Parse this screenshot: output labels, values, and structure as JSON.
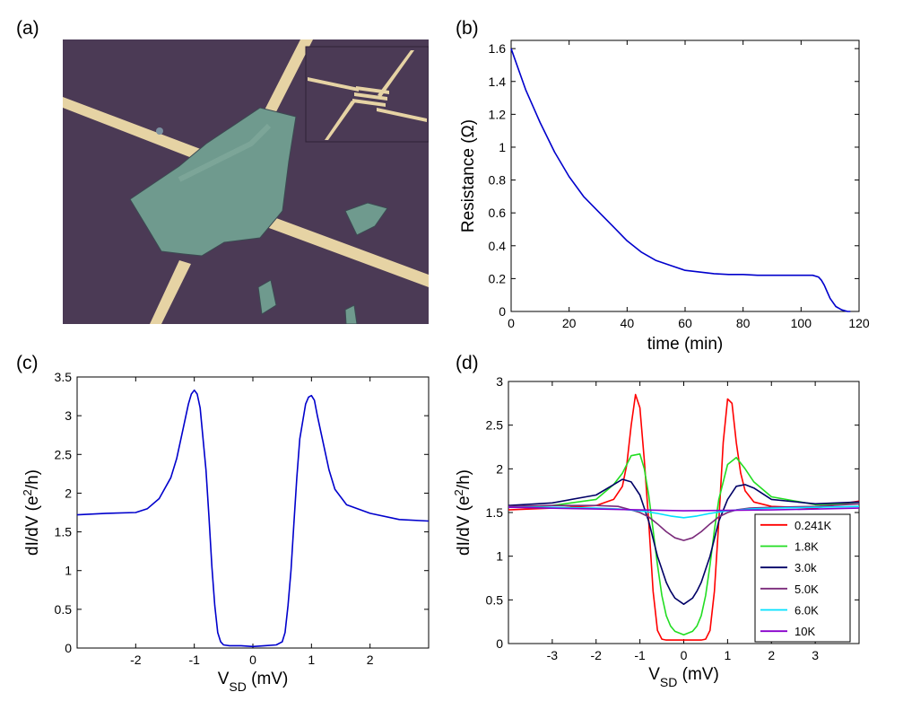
{
  "panel_labels": [
    "(a)",
    "(b)",
    "(c)",
    "(d)"
  ],
  "photo": {
    "background_color": "#4b3a55",
    "flake_color": "#6f9a8e",
    "electrode_color": "#e6d3a4"
  },
  "chart_data": [
    {
      "type": "line",
      "panel": "(b)",
      "xlabel": "time (min)",
      "ylabel": "Resistance (Ω)",
      "xlim": [
        0,
        120
      ],
      "ylim": [
        0,
        1.65
      ],
      "xticks": [
        0,
        20,
        40,
        60,
        80,
        100,
        120
      ],
      "yticks": [
        0,
        0.2,
        0.4,
        0.6,
        0.8,
        1,
        1.2,
        1.4,
        1.6
      ],
      "series": [
        {
          "color": "#0000cc",
          "x": [
            0,
            5,
            10,
            15,
            20,
            25,
            30,
            35,
            40,
            45,
            50,
            55,
            60,
            65,
            70,
            75,
            80,
            85,
            90,
            95,
            100,
            104,
            106,
            107,
            108,
            109,
            110,
            112,
            114,
            116,
            117
          ],
          "y": [
            1.6,
            1.35,
            1.15,
            0.97,
            0.82,
            0.7,
            0.61,
            0.52,
            0.43,
            0.36,
            0.31,
            0.28,
            0.25,
            0.24,
            0.23,
            0.225,
            0.225,
            0.22,
            0.22,
            0.22,
            0.22,
            0.22,
            0.21,
            0.19,
            0.16,
            0.12,
            0.08,
            0.03,
            0.01,
            0.0,
            0.0
          ]
        }
      ]
    },
    {
      "type": "line",
      "panel": "(c)",
      "xlabel": "V_SD (mV)",
      "ylabel": "dI/dV (e²/h)",
      "xlim": [
        -3,
        3
      ],
      "ylim": [
        0,
        3.5
      ],
      "xticks": [
        -2,
        -1,
        0,
        1,
        2
      ],
      "yticks": [
        0,
        0.5,
        1,
        1.5,
        2,
        2.5,
        3,
        3.5
      ],
      "series": [
        {
          "color": "#0000cc",
          "x": [
            -3,
            -2.5,
            -2,
            -1.8,
            -1.6,
            -1.4,
            -1.3,
            -1.2,
            -1.1,
            -1.05,
            -1.0,
            -0.95,
            -0.9,
            -0.8,
            -0.75,
            -0.7,
            -0.65,
            -0.6,
            -0.55,
            -0.5,
            -0.4,
            -0.2,
            0,
            0.2,
            0.4,
            0.5,
            0.55,
            0.6,
            0.65,
            0.7,
            0.75,
            0.8,
            0.9,
            0.95,
            1.0,
            1.05,
            1.1,
            1.2,
            1.3,
            1.4,
            1.6,
            2.0,
            2.5,
            3.0
          ],
          "y": [
            1.72,
            1.74,
            1.75,
            1.8,
            1.93,
            2.2,
            2.45,
            2.8,
            3.15,
            3.28,
            3.33,
            3.28,
            3.1,
            2.3,
            1.7,
            1.05,
            0.55,
            0.2,
            0.08,
            0.04,
            0.03,
            0.03,
            0.02,
            0.03,
            0.04,
            0.08,
            0.2,
            0.55,
            1.0,
            1.6,
            2.2,
            2.7,
            3.15,
            3.24,
            3.26,
            3.2,
            3.0,
            2.65,
            2.3,
            2.05,
            1.85,
            1.74,
            1.66,
            1.64
          ]
        }
      ]
    },
    {
      "type": "line",
      "panel": "(d)",
      "xlabel": "V_SD (mV)",
      "ylabel": "dI/dV (e²/h)",
      "xlim": [
        -4,
        4
      ],
      "ylim": [
        0,
        3
      ],
      "xticks": [
        -3,
        -2,
        -1,
        0,
        1,
        2,
        3
      ],
      "yticks": [
        0,
        0.5,
        1,
        1.5,
        2,
        2.5,
        3
      ],
      "legend_position": "bottom-right",
      "series": [
        {
          "name": "0.241K",
          "color": "#ff0000",
          "x": [
            -4,
            -3,
            -2,
            -1.6,
            -1.4,
            -1.3,
            -1.2,
            -1.1,
            -1.0,
            -0.9,
            -0.8,
            -0.7,
            -0.6,
            -0.5,
            -0.4,
            -0.2,
            0,
            0.2,
            0.4,
            0.5,
            0.6,
            0.7,
            0.8,
            0.9,
            1.0,
            1.1,
            1.2,
            1.3,
            1.4,
            1.6,
            2,
            3,
            4
          ],
          "y": [
            1.53,
            1.55,
            1.58,
            1.65,
            1.8,
            2.05,
            2.5,
            2.85,
            2.7,
            2.1,
            1.4,
            0.6,
            0.15,
            0.05,
            0.04,
            0.04,
            0.04,
            0.04,
            0.04,
            0.05,
            0.15,
            0.6,
            1.4,
            2.3,
            2.8,
            2.75,
            2.3,
            1.95,
            1.75,
            1.62,
            1.57,
            1.55,
            1.63
          ]
        },
        {
          "name": "1.8K",
          "color": "#22dd22",
          "x": [
            -4,
            -3,
            -2,
            -1.6,
            -1.4,
            -1.2,
            -1.0,
            -0.9,
            -0.8,
            -0.7,
            -0.6,
            -0.5,
            -0.4,
            -0.3,
            -0.2,
            0,
            0.2,
            0.3,
            0.4,
            0.5,
            0.6,
            0.7,
            0.8,
            1.0,
            1.2,
            1.4,
            1.6,
            2,
            3,
            4
          ],
          "y": [
            1.56,
            1.58,
            1.65,
            1.82,
            1.95,
            2.15,
            2.17,
            2.0,
            1.7,
            1.3,
            0.9,
            0.55,
            0.32,
            0.2,
            0.14,
            0.1,
            0.14,
            0.2,
            0.32,
            0.55,
            0.9,
            1.3,
            1.65,
            2.05,
            2.13,
            2.0,
            1.85,
            1.68,
            1.59,
            1.6
          ]
        },
        {
          "name": "3.0k",
          "color": "#000066",
          "x": [
            -4,
            -3,
            -2,
            -1.6,
            -1.4,
            -1.2,
            -1.0,
            -0.9,
            -0.8,
            -0.7,
            -0.6,
            -0.5,
            -0.4,
            -0.3,
            -0.2,
            0,
            0.2,
            0.3,
            0.4,
            0.5,
            0.6,
            0.7,
            0.8,
            1.0,
            1.2,
            1.4,
            1.6,
            2,
            3,
            4
          ],
          "y": [
            1.58,
            1.61,
            1.7,
            1.82,
            1.88,
            1.85,
            1.7,
            1.55,
            1.4,
            1.2,
            1.0,
            0.85,
            0.7,
            0.6,
            0.52,
            0.45,
            0.52,
            0.6,
            0.7,
            0.85,
            1.0,
            1.2,
            1.4,
            1.65,
            1.8,
            1.82,
            1.78,
            1.65,
            1.6,
            1.62
          ]
        },
        {
          "name": "5.0K",
          "color": "#7a2a7a",
          "x": [
            -4,
            -3,
            -2,
            -1.5,
            -1.2,
            -1.0,
            -0.8,
            -0.6,
            -0.4,
            -0.2,
            0,
            0.2,
            0.4,
            0.6,
            0.8,
            1.0,
            1.2,
            1.5,
            2,
            3,
            4
          ],
          "y": [
            1.57,
            1.58,
            1.58,
            1.57,
            1.53,
            1.5,
            1.45,
            1.37,
            1.28,
            1.21,
            1.18,
            1.21,
            1.28,
            1.37,
            1.45,
            1.5,
            1.53,
            1.55,
            1.56,
            1.57,
            1.6
          ]
        },
        {
          "name": "6.0K",
          "color": "#00e0ff",
          "x": [
            -4,
            -3,
            -2,
            -1.5,
            -1.0,
            -0.6,
            -0.3,
            0,
            0.3,
            0.6,
            1.0,
            1.5,
            2,
            3,
            4
          ],
          "y": [
            1.56,
            1.56,
            1.55,
            1.54,
            1.52,
            1.49,
            1.46,
            1.44,
            1.46,
            1.49,
            1.52,
            1.54,
            1.55,
            1.56,
            1.57
          ]
        },
        {
          "name": "10K",
          "color": "#8800cc",
          "x": [
            -4,
            -2,
            0,
            2,
            4
          ],
          "y": [
            1.56,
            1.54,
            1.52,
            1.53,
            1.55
          ]
        }
      ]
    }
  ]
}
